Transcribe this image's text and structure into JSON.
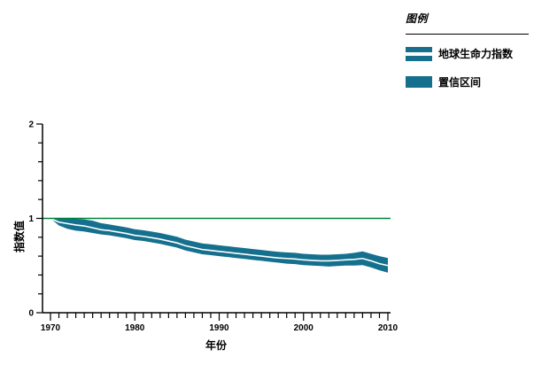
{
  "colors": {
    "band": "#15708e",
    "center_line": "#ffffff",
    "reference_line": "#00833d",
    "axis": "#000000"
  },
  "legend": {
    "title": "图例",
    "items": [
      {
        "label": "地球生命力指数",
        "swatch": "double-bar"
      },
      {
        "label": "置信区间",
        "swatch": "solid"
      }
    ]
  },
  "chart_data": {
    "type": "line",
    "title": "",
    "xlabel": "年份",
    "ylabel": "指数值",
    "xlim": [
      1970,
      2010
    ],
    "ylim": [
      0,
      2
    ],
    "xticks_major": [
      1970,
      1980,
      1990,
      2000,
      2010
    ],
    "xtick_minor_step": 1,
    "yticks_major": [
      0,
      1,
      2
    ],
    "ytick_minor_step": 0.2,
    "reference_line_y": 1,
    "grid": false,
    "legend_position": "top-right",
    "x": [
      1970,
      1971,
      1972,
      1973,
      1974,
      1975,
      1976,
      1977,
      1978,
      1979,
      1980,
      1981,
      1982,
      1983,
      1984,
      1985,
      1986,
      1987,
      1988,
      1989,
      1990,
      1991,
      1992,
      1993,
      1994,
      1995,
      1996,
      1997,
      1998,
      1999,
      2000,
      2001,
      2002,
      2003,
      2004,
      2005,
      2006,
      2007,
      2008,
      2009,
      2010
    ],
    "series": [
      {
        "name": "地球生命力指数",
        "values": [
          1.0,
          0.96,
          0.945,
          0.93,
          0.92,
          0.9,
          0.88,
          0.87,
          0.855,
          0.84,
          0.82,
          0.81,
          0.795,
          0.78,
          0.76,
          0.74,
          0.71,
          0.69,
          0.67,
          0.66,
          0.65,
          0.64,
          0.63,
          0.62,
          0.61,
          0.6,
          0.59,
          0.58,
          0.575,
          0.57,
          0.56,
          0.555,
          0.55,
          0.55,
          0.555,
          0.56,
          0.565,
          0.575,
          0.55,
          0.52,
          0.5
        ]
      }
    ],
    "ci_upper": [
      1.0,
      1.0,
      1.0,
      0.995,
      0.99,
      0.975,
      0.95,
      0.935,
      0.92,
      0.905,
      0.885,
      0.875,
      0.86,
      0.845,
      0.825,
      0.805,
      0.775,
      0.755,
      0.735,
      0.725,
      0.715,
      0.705,
      0.695,
      0.685,
      0.675,
      0.665,
      0.655,
      0.645,
      0.64,
      0.635,
      0.625,
      0.62,
      0.615,
      0.615,
      0.62,
      0.625,
      0.635,
      0.65,
      0.625,
      0.6,
      0.58
    ],
    "ci_lower": [
      1.0,
      0.925,
      0.89,
      0.87,
      0.86,
      0.845,
      0.83,
      0.82,
      0.805,
      0.79,
      0.77,
      0.76,
      0.745,
      0.73,
      0.71,
      0.69,
      0.66,
      0.64,
      0.62,
      0.61,
      0.6,
      0.59,
      0.58,
      0.57,
      0.56,
      0.55,
      0.54,
      0.53,
      0.52,
      0.515,
      0.505,
      0.5,
      0.495,
      0.49,
      0.495,
      0.5,
      0.5,
      0.505,
      0.48,
      0.45,
      0.425
    ]
  }
}
